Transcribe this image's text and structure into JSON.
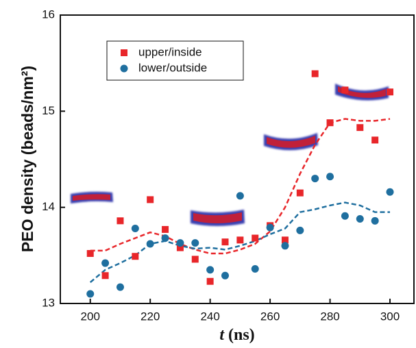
{
  "chart_data": {
    "type": "scatter",
    "xlabel": {
      "variable": "t",
      "unit": "(ns)"
    },
    "ylabel": "PEO density (beads/nm²)",
    "x": [
      200,
      205,
      210,
      215,
      220,
      225,
      230,
      235,
      240,
      245,
      250,
      255,
      260,
      265,
      270,
      275,
      280,
      285,
      290,
      295,
      300
    ],
    "series": [
      {
        "name": "upper/inside",
        "color": "#e8262a",
        "marker": "square",
        "values": [
          13.52,
          13.29,
          13.86,
          13.49,
          14.08,
          13.77,
          13.58,
          13.46,
          13.23,
          13.64,
          13.66,
          13.68,
          13.81,
          13.66,
          14.15,
          15.39,
          14.88,
          15.22,
          14.83,
          14.7,
          15.2
        ]
      },
      {
        "name": "lower/outside",
        "color": "#1f6f9f",
        "marker": "circle",
        "values": [
          13.1,
          13.42,
          13.17,
          13.78,
          13.62,
          13.68,
          13.63,
          13.63,
          13.35,
          13.29,
          14.12,
          13.36,
          13.79,
          13.6,
          13.76,
          14.3,
          14.32,
          13.91,
          13.88,
          13.86,
          14.16
        ]
      }
    ],
    "trend_lines": [
      {
        "color": "#e8262a",
        "values": [
          13.55,
          13.55,
          13.62,
          13.68,
          13.74,
          13.7,
          13.62,
          13.56,
          13.52,
          13.52,
          13.56,
          13.62,
          13.75,
          14.0,
          14.35,
          14.65,
          14.88,
          14.92,
          14.9,
          14.9,
          14.92
        ]
      },
      {
        "color": "#1f6f9f",
        "values": [
          13.22,
          13.35,
          13.42,
          13.5,
          13.62,
          13.65,
          13.6,
          13.57,
          13.58,
          13.56,
          13.6,
          13.65,
          13.72,
          13.78,
          13.95,
          13.98,
          14.02,
          14.05,
          14.02,
          13.95,
          13.95
        ]
      }
    ],
    "xlim": [
      190,
      308
    ],
    "ylim": [
      13,
      16
    ],
    "xticks": [
      200,
      220,
      240,
      260,
      280,
      300
    ],
    "yticks": [
      13,
      14,
      15,
      16
    ],
    "grid": false
  }
}
